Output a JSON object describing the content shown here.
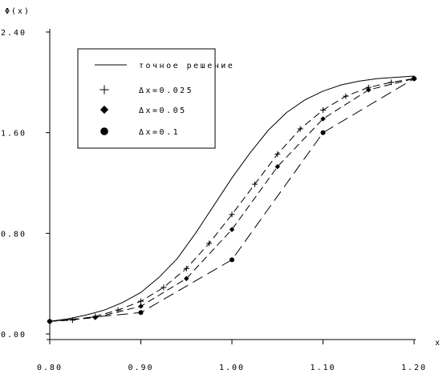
{
  "chart_data": {
    "type": "line",
    "title": "",
    "xlabel": "x",
    "ylabel": "Φ(x)",
    "xlim": [
      0.8,
      1.2
    ],
    "ylim": [
      0.0,
      2.4
    ],
    "x_ticks": [
      0.8,
      0.9,
      1.0,
      1.1,
      1.2
    ],
    "x_tick_labels": [
      "0.80",
      "0.90",
      "1.00",
      "1.10",
      "1.20"
    ],
    "y_ticks": [
      0.0,
      0.8,
      1.6,
      2.4
    ],
    "y_tick_labels": [
      "0.00",
      "0.80",
      "1.60",
      "2.40"
    ],
    "grid": false,
    "legend_position": "top-left",
    "series": [
      {
        "name": "точное решение",
        "style": "solid",
        "marker": "none",
        "x": [
          0.8,
          0.82,
          0.84,
          0.86,
          0.88,
          0.9,
          0.92,
          0.94,
          0.96,
          0.98,
          1.0,
          1.02,
          1.04,
          1.06,
          1.08,
          1.1,
          1.12,
          1.14,
          1.16,
          1.18,
          1.2
        ],
        "values": [
          0.1,
          0.12,
          0.15,
          0.19,
          0.25,
          0.33,
          0.45,
          0.6,
          0.8,
          1.02,
          1.24,
          1.44,
          1.62,
          1.76,
          1.86,
          1.93,
          1.98,
          2.01,
          2.03,
          2.04,
          2.05
        ]
      },
      {
        "name": "Δx=0.025",
        "style": "dash",
        "marker": "plus",
        "x": [
          0.8,
          0.825,
          0.85,
          0.875,
          0.9,
          0.925,
          0.95,
          0.975,
          1.0,
          1.025,
          1.05,
          1.075,
          1.1,
          1.125,
          1.15,
          1.175,
          1.2
        ],
        "values": [
          0.1,
          0.11,
          0.14,
          0.19,
          0.26,
          0.37,
          0.52,
          0.72,
          0.95,
          1.19,
          1.43,
          1.63,
          1.78,
          1.89,
          1.96,
          2.0,
          2.03
        ]
      },
      {
        "name": "Δx=0.05",
        "style": "dash",
        "marker": "diamond",
        "x": [
          0.8,
          0.85,
          0.9,
          0.95,
          1.0,
          1.05,
          1.1,
          1.15,
          1.2
        ],
        "values": [
          0.1,
          0.13,
          0.22,
          0.44,
          0.83,
          1.33,
          1.71,
          1.94,
          2.03
        ]
      },
      {
        "name": "Δx=0.1",
        "style": "longdash",
        "marker": "circle",
        "x": [
          0.8,
          0.9,
          1.0,
          1.1,
          1.2
        ],
        "values": [
          0.1,
          0.17,
          0.59,
          1.6,
          2.03
        ]
      }
    ]
  }
}
